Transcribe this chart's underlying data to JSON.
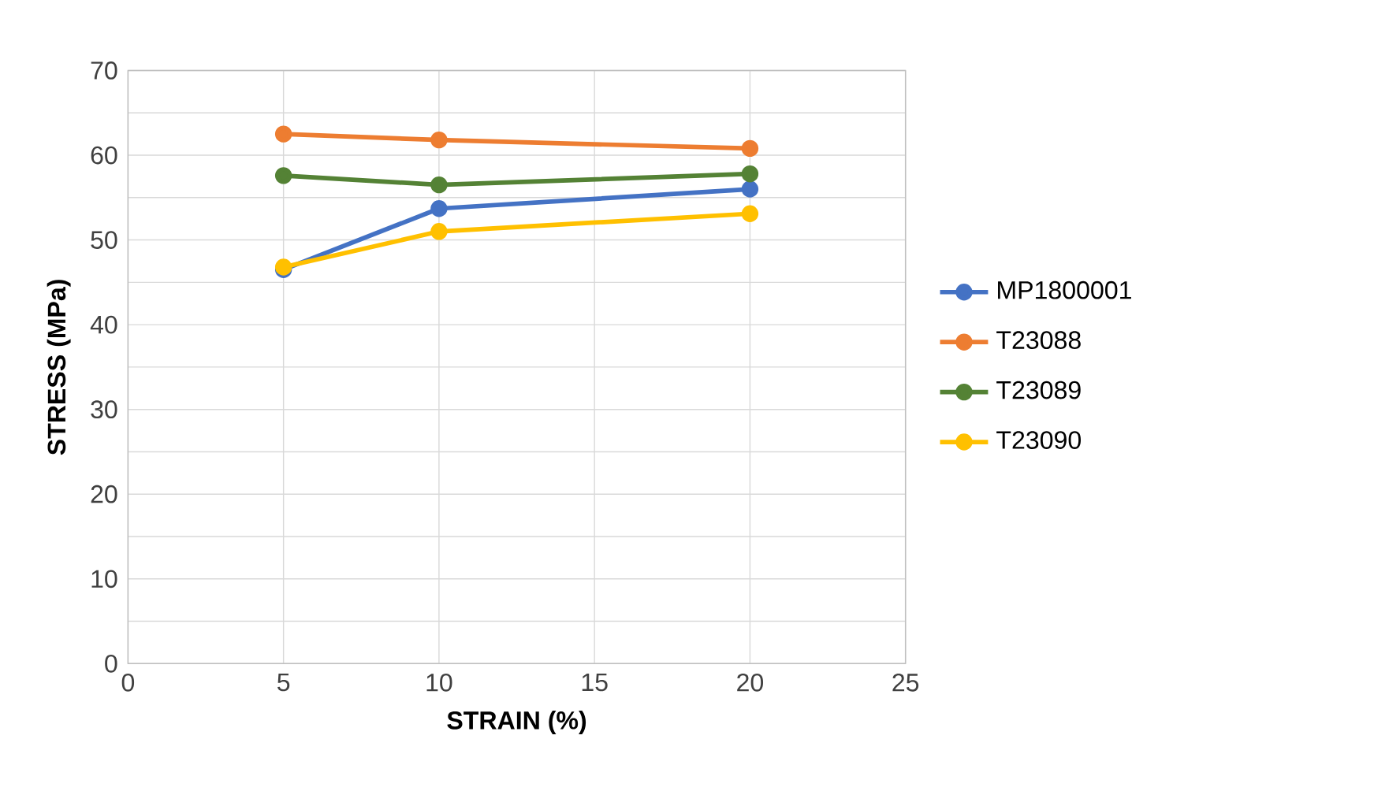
{
  "chart_data": {
    "type": "line",
    "xlabel": "STRAIN (%)",
    "ylabel": "STRESS (MPa)",
    "x": [
      5,
      10,
      20
    ],
    "series": [
      {
        "name": "MP1800001",
        "color": "#4472c4",
        "values": [
          46.5,
          53.7,
          56.0
        ]
      },
      {
        "name": "T23088",
        "color": "#ed7d31",
        "values": [
          62.5,
          61.8,
          60.8
        ]
      },
      {
        "name": "T23089",
        "color": "#548235",
        "values": [
          57.6,
          56.5,
          57.8
        ]
      },
      {
        "name": "T23090",
        "color": "#ffc000",
        "values": [
          46.8,
          51.0,
          53.1
        ]
      }
    ],
    "xlim": [
      0,
      25
    ],
    "xticks": [
      0,
      5,
      10,
      15,
      20,
      25
    ],
    "ylim": [
      0,
      70
    ],
    "yticks": [
      0,
      {
        "value": 5,
        "label": null
      },
      10,
      {
        "value": 15,
        "label": null
      },
      20,
      {
        "value": 25,
        "label": null
      },
      30,
      {
        "value": 35,
        "label": null
      },
      40,
      {
        "value": 45,
        "label": null
      },
      50,
      {
        "value": 55,
        "label": null
      },
      60,
      {
        "value": 65,
        "label": null
      },
      70
    ],
    "grid": true,
    "legend": "right",
    "marker": "circle",
    "line_style": "solid"
  }
}
